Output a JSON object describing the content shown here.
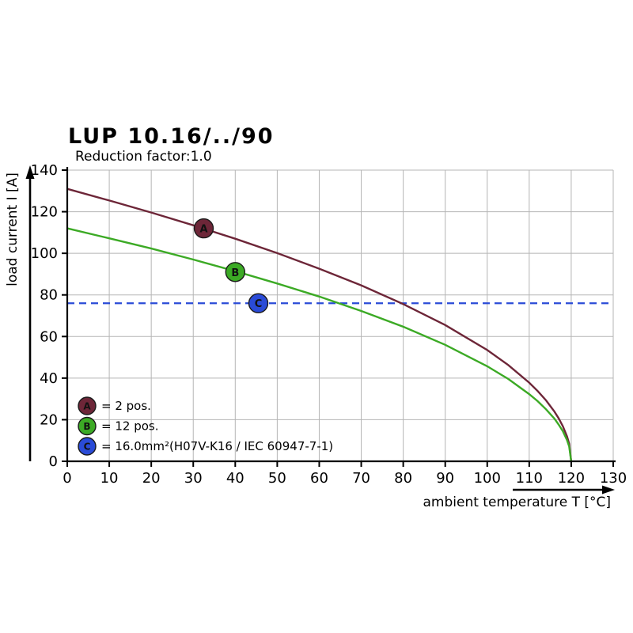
{
  "page": {
    "background": "#ffffff"
  },
  "chart_data": {
    "type": "line",
    "title": "LUP 10.16/../90",
    "subtitle": "Reduction factor:1.0",
    "xlabel": "ambient temperature T [°C]",
    "ylabel": "load current I [A]",
    "xlim": [
      0,
      130
    ],
    "ylim": [
      0,
      140
    ],
    "xticks": [
      0,
      10,
      20,
      30,
      40,
      50,
      60,
      70,
      80,
      90,
      100,
      110,
      120,
      130
    ],
    "yticks": [
      0,
      20,
      40,
      60,
      80,
      100,
      120,
      140
    ],
    "grid": true,
    "legend_position": "inside-bottom-left",
    "series": [
      {
        "name": "A",
        "label": "= 2 pos.",
        "color": "#6d2638",
        "x": [
          0,
          10,
          20,
          30,
          40,
          50,
          60,
          70,
          80,
          90,
          100,
          105,
          110,
          112,
          114,
          116,
          117,
          118,
          119,
          119.5,
          120
        ],
        "y": [
          131,
          125.4,
          119.6,
          113.5,
          107,
          100.1,
          92.6,
          84.6,
          75.6,
          65.5,
          53.5,
          46.3,
          37.8,
          33.8,
          29.3,
          23.9,
          20.7,
          16.9,
          12,
          8.5,
          0
        ],
        "marker": {
          "x": 32.5,
          "y": 112
        }
      },
      {
        "name": "B",
        "label": "= 12 pos.",
        "color": "#3caa25",
        "x": [
          0,
          10,
          20,
          30,
          40,
          50,
          60,
          70,
          80,
          90,
          100,
          105,
          110,
          112,
          114,
          116,
          117,
          118,
          119,
          119.5,
          120
        ],
        "y": [
          112,
          107.2,
          102.3,
          97,
          91.4,
          85.5,
          79.2,
          72.3,
          64.7,
          56,
          45.7,
          39.6,
          32.3,
          28.9,
          25,
          20.5,
          17.7,
          14.5,
          10.2,
          7.2,
          0
        ],
        "marker": {
          "x": 40,
          "y": 91
        }
      }
    ],
    "reference_line": {
      "name": "C",
      "label": "= 16.0mm²(H07V-K16 / IEC 60947-7-1)",
      "color": "#2a4bd7",
      "y": 76,
      "marker": {
        "x": 45.5,
        "y": 76
      }
    }
  }
}
